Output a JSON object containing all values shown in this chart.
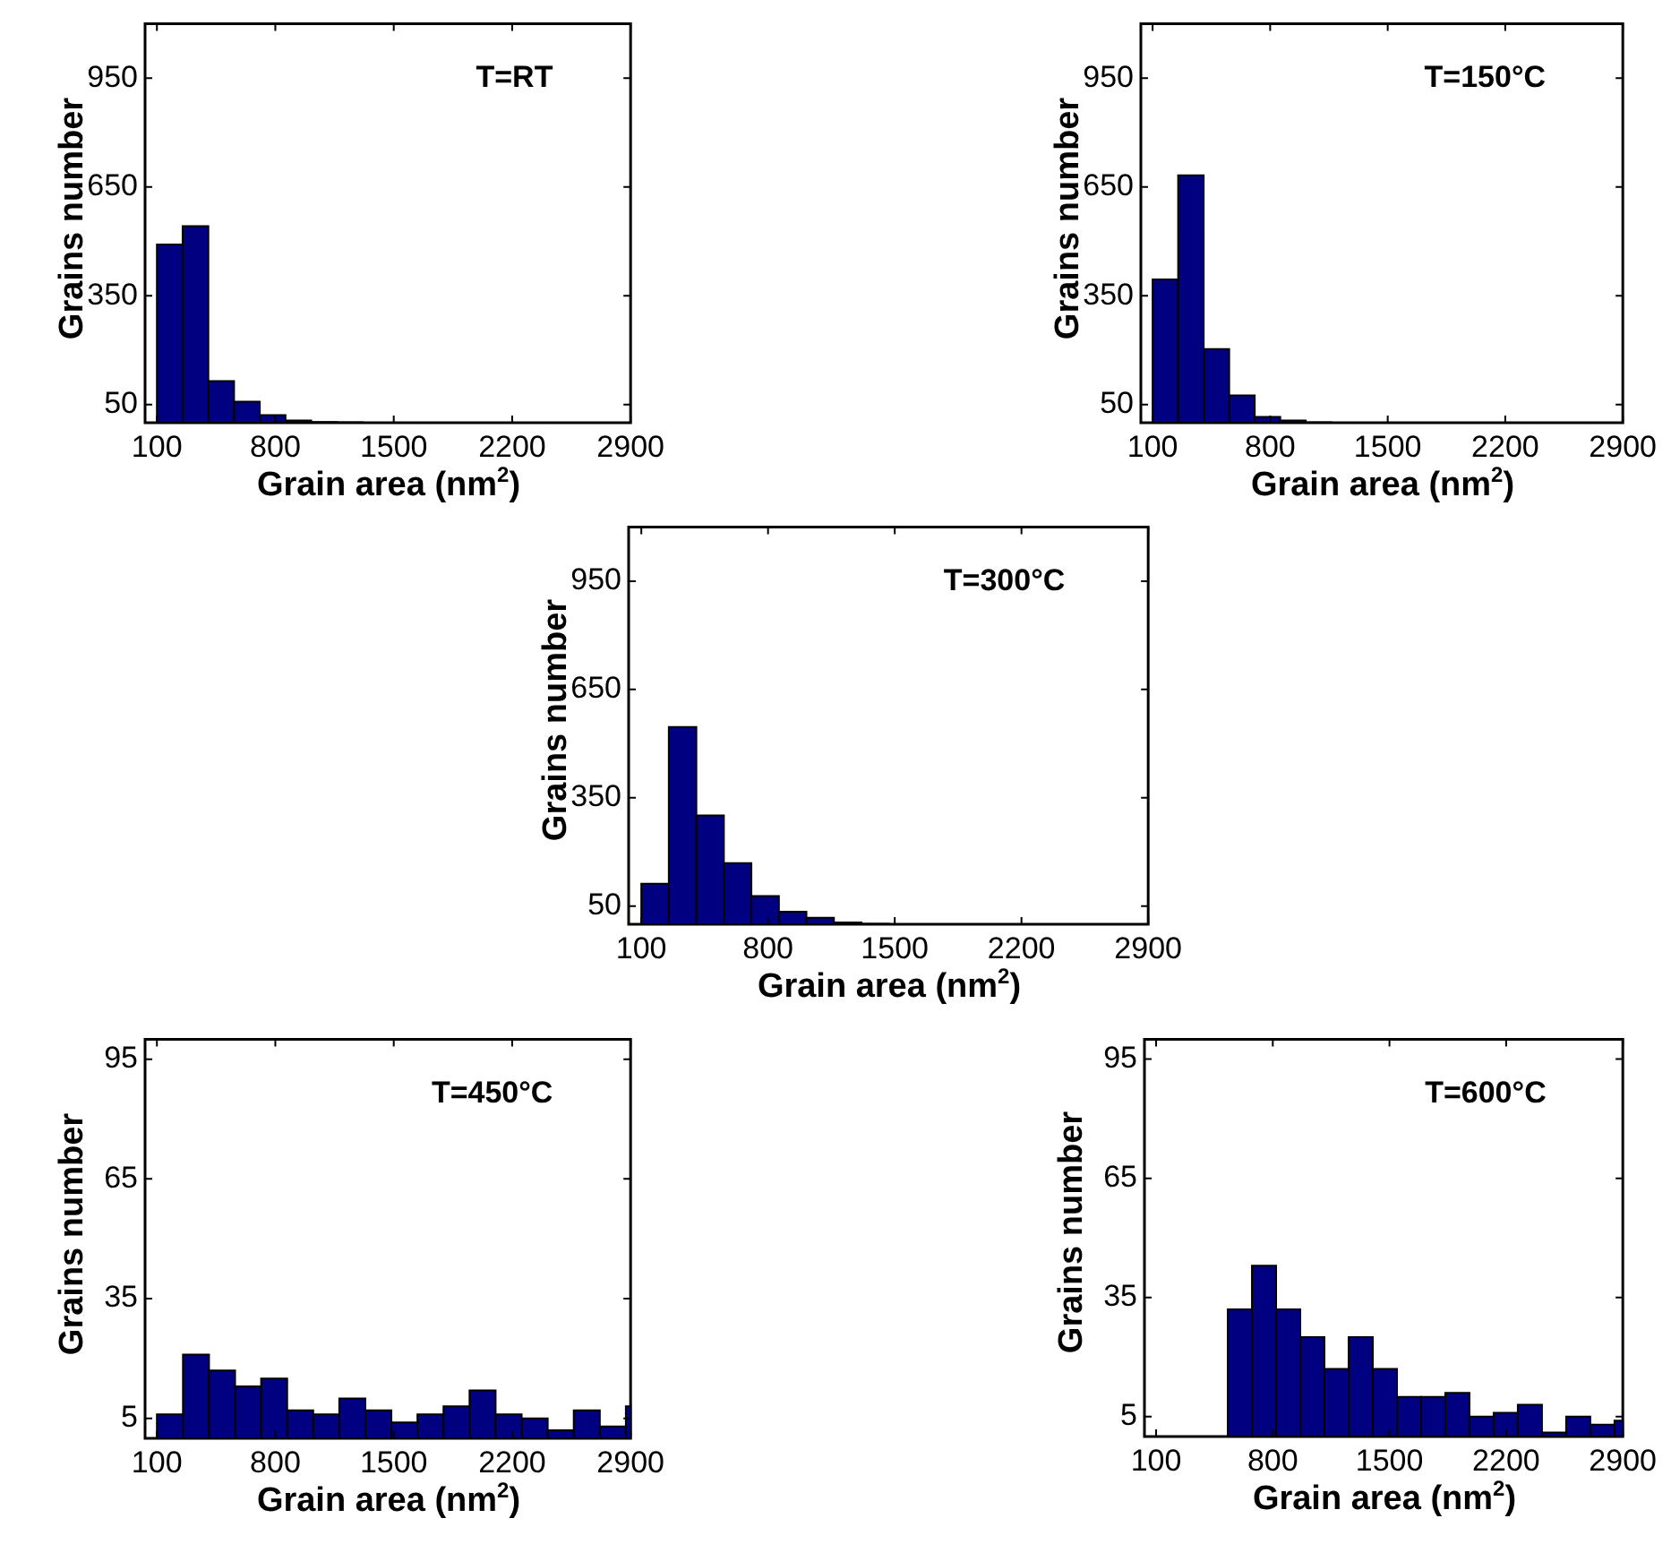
{
  "chart_data": [
    {
      "type": "histogram",
      "title": "T=RT",
      "xlabel": "Grain area (nm$^{2}$)",
      "ylabel": "Grains number",
      "color": "#000080",
      "bins": [
        100,
        252,
        404,
        556,
        708,
        860,
        1012,
        1164,
        1316
      ],
      "values": [
        491,
        542,
        115,
        58,
        21,
        6,
        2,
        1
      ],
      "xlim": [
        30,
        2900
      ],
      "ylim": [
        0,
        1100
      ],
      "xticks": [
        100,
        800,
        1500,
        2200,
        2900
      ],
      "yticks": [
        50,
        350,
        650,
        950
      ]
    },
    {
      "type": "histogram",
      "title": "T=150°C",
      "xlabel": "Grain area (nm$^{2}$)",
      "ylabel": "Grains number",
      "color": "#000080",
      "bins": [
        100,
        252,
        404,
        556,
        708,
        860,
        1012,
        1164
      ],
      "values": [
        395,
        682,
        203,
        75,
        16,
        6,
        1
      ],
      "xlim": [
        30,
        2900
      ],
      "ylim": [
        0,
        1100
      ],
      "xticks": [
        100,
        800,
        1500,
        2200,
        2900
      ],
      "yticks": [
        50,
        350,
        650,
        950
      ]
    },
    {
      "type": "histogram",
      "title": "T=300°C",
      "xlabel": "Grain area (nm$^{2}$)",
      "ylabel": "Grains number",
      "color": "#000080",
      "bins": [
        100,
        252,
        404,
        556,
        708,
        860,
        1012,
        1164,
        1316,
        1468
      ],
      "values": [
        112,
        546,
        301,
        169,
        78,
        35,
        18,
        5,
        1
      ],
      "xlim": [
        30,
        2900
      ],
      "ylim": [
        0,
        1100
      ],
      "xticks": [
        100,
        800,
        1500,
        2200,
        2900
      ],
      "yticks": [
        50,
        350,
        650,
        950
      ]
    },
    {
      "type": "histogram",
      "title": "T=450°C",
      "xlabel": "Grain area (nm$^{2}$)",
      "ylabel": "Grains number",
      "color": "#000080",
      "bins": [
        100,
        254,
        408,
        562,
        716,
        870,
        1024,
        1178,
        1332,
        1486,
        1640,
        1794,
        1948,
        2102,
        2256,
        2410,
        2564,
        2718,
        2872,
        2900
      ],
      "values": [
        6,
        21,
        17,
        13,
        15,
        7,
        6,
        10,
        7,
        4,
        6,
        8,
        12,
        6,
        5,
        2,
        7,
        3,
        8
      ],
      "xlim": [
        30,
        2900
      ],
      "ylim": [
        0,
        100
      ],
      "xticks": [
        100,
        800,
        1500,
        2200,
        2900
      ],
      "yticks": [
        5,
        35,
        65,
        95
      ]
    },
    {
      "type": "histogram",
      "title": "T=600°C",
      "xlabel": "Grain area (nm$^{2}$)",
      "ylabel": "Grains number",
      "color": "#000080",
      "bins": [
        530,
        675,
        820,
        965,
        1110,
        1255,
        1400,
        1545,
        1690,
        1835,
        1980,
        2125,
        2270,
        2415,
        2560,
        2705,
        2850,
        2900
      ],
      "values": [
        32,
        43,
        32,
        25,
        17,
        25,
        17,
        10,
        10,
        11,
        5,
        6,
        8,
        1,
        5,
        3,
        4
      ],
      "xlim": [
        30,
        2900
      ],
      "ylim": [
        0,
        100
      ],
      "xticks": [
        100,
        800,
        1500,
        2200,
        2900
      ],
      "yticks": [
        5,
        35,
        65,
        95
      ]
    }
  ]
}
